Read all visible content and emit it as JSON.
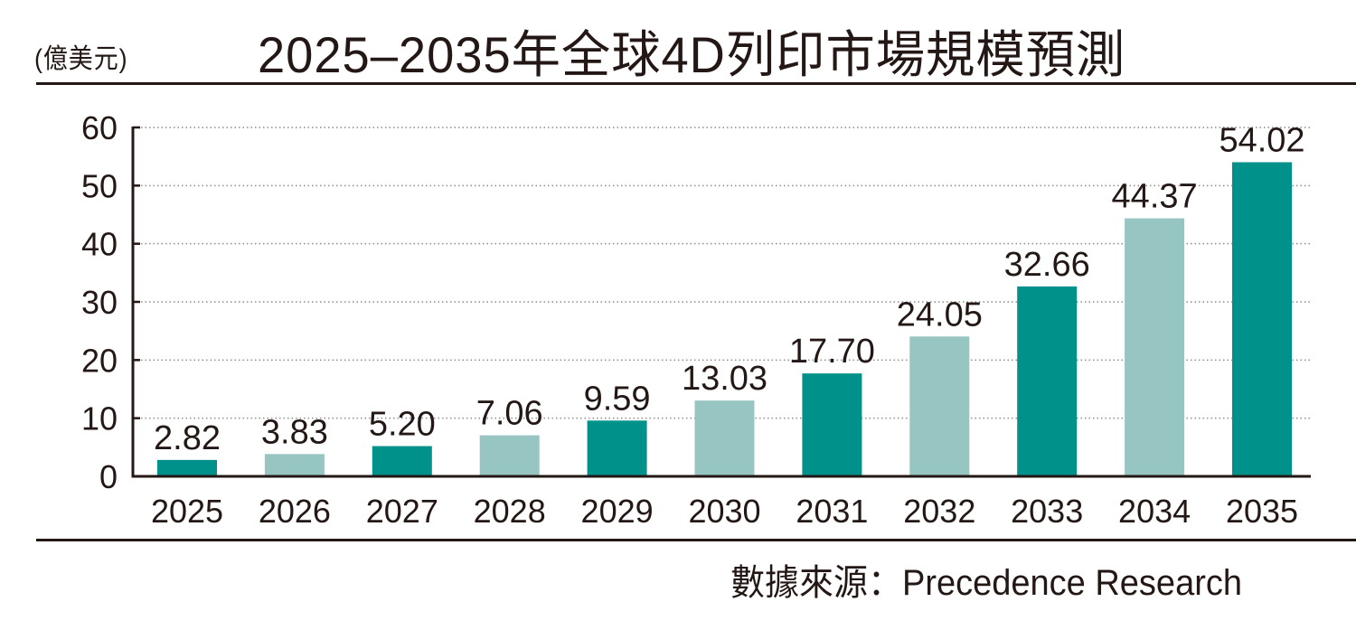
{
  "header": {
    "unit_label": "(億美元)",
    "title": "2025–2035年全球4D列印市場規模預測"
  },
  "footer": {
    "source": "數據來源：Precedence Research"
  },
  "colors": {
    "dark_bar": "#00918a",
    "light_bar": "#97c5c1",
    "text": "#231815",
    "grid": "#8c8c8c"
  },
  "chart_data": {
    "type": "bar",
    "title": "2025–2035年全球4D列印市場規模預測",
    "xlabel": "",
    "ylabel": "(億美元)",
    "categories": [
      "2025",
      "2026",
      "2027",
      "2028",
      "2029",
      "2030",
      "2031",
      "2032",
      "2033",
      "2034",
      "2035"
    ],
    "values": [
      2.82,
      3.83,
      5.2,
      7.06,
      9.59,
      13.03,
      17.7,
      24.05,
      32.66,
      44.37,
      54.02
    ],
    "value_labels": [
      "2.82",
      "3.83",
      "5.20",
      "7.06",
      "9.59",
      "13.03",
      "17.70",
      "24.05",
      "32.66",
      "44.37",
      "54.02"
    ],
    "bar_color_pattern": [
      "dark",
      "light",
      "dark",
      "light",
      "dark",
      "light",
      "dark",
      "light",
      "dark",
      "light",
      "dark"
    ],
    "ylim": [
      0,
      60
    ],
    "yticks": [
      0,
      10,
      20,
      30,
      40,
      50,
      60
    ],
    "grid": "horizontal dotted",
    "legend": "none",
    "source": "Precedence Research"
  }
}
